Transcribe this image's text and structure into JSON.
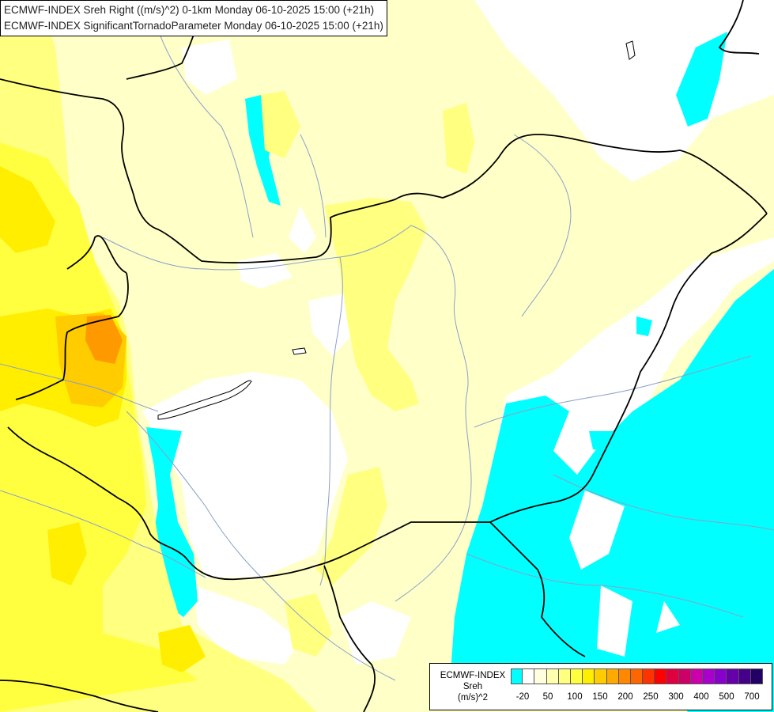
{
  "title": {
    "line1": "ECMWF-INDEX Sreh Right ((m/s)^2) 0-1km Monday 06-10-2025 15:00 (+21h)",
    "line2": "ECMWF-INDEX SignificantTornadoParameter Monday 06-10-2025 15:00 (+21h)"
  },
  "legend": {
    "source": "ECMWF-INDEX",
    "param": "Sreh",
    "unit": "(m/s)^2",
    "colors": [
      "#00ffff",
      "#ffffff",
      "#ffffe0",
      "#ffffb0",
      "#ffff80",
      "#ffff40",
      "#ffee00",
      "#ffcc00",
      "#ffaa00",
      "#ff8800",
      "#ff6600",
      "#ff3300",
      "#ff0000",
      "#e00040",
      "#cc0066",
      "#cc00aa",
      "#aa00cc",
      "#8800cc",
      "#6600aa",
      "#440088",
      "#220066"
    ],
    "ticks": [
      "-20",
      "50",
      "100",
      "150",
      "200",
      "250",
      "300",
      "400",
      "500",
      "700"
    ]
  }
}
